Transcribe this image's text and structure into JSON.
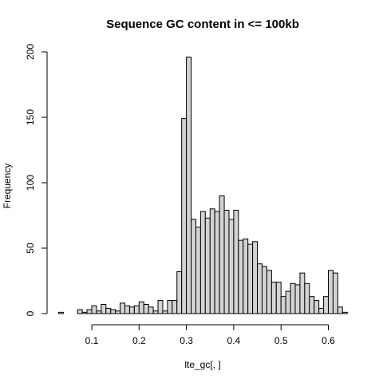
{
  "chart_data": {
    "type": "bar",
    "title": "Sequence GC content in <= 100kb",
    "xlabel": "lte_gc[, ]",
    "ylabel": "Frequency",
    "x_ticks": [
      0.1,
      0.2,
      0.3,
      0.4,
      0.5,
      0.6
    ],
    "x_tick_labels": [
      "0.1",
      "0.2",
      "0.3",
      "0.4",
      "0.5",
      "0.6"
    ],
    "y_ticks": [
      0,
      50,
      100,
      150,
      200
    ],
    "y_tick_labels": [
      "0",
      "50",
      "100",
      "150",
      "200"
    ],
    "xlim": [
      0.03,
      0.64
    ],
    "ylim": [
      0,
      200
    ],
    "bin_width": 0.01,
    "bins_start": [
      0.03,
      0.04,
      0.05,
      0.06,
      0.07,
      0.08,
      0.09,
      0.1,
      0.11,
      0.12,
      0.13,
      0.14,
      0.15,
      0.16,
      0.17,
      0.18,
      0.19,
      0.2,
      0.21,
      0.22,
      0.23,
      0.24,
      0.25,
      0.26,
      0.27,
      0.28,
      0.29,
      0.3,
      0.31,
      0.32,
      0.33,
      0.34,
      0.35,
      0.36,
      0.37,
      0.38,
      0.39,
      0.4,
      0.41,
      0.42,
      0.43,
      0.44,
      0.45,
      0.46,
      0.47,
      0.48,
      0.49,
      0.5,
      0.51,
      0.52,
      0.53,
      0.54,
      0.55,
      0.56,
      0.57,
      0.58,
      0.59,
      0.6,
      0.61,
      0.62,
      0.63
    ],
    "values": [
      1,
      0,
      0,
      0,
      3,
      1,
      3,
      6,
      2,
      7,
      4,
      3,
      2,
      8,
      6,
      5,
      6,
      9,
      7,
      5,
      2,
      10,
      2,
      10,
      10,
      32,
      149,
      196,
      72,
      66,
      78,
      73,
      80,
      78,
      90,
      79,
      72,
      79,
      56,
      57,
      53,
      55,
      38,
      36,
      33,
      24,
      24,
      13,
      17,
      23,
      22,
      31,
      23,
      13,
      10,
      4,
      13,
      33,
      31,
      5,
      1
    ]
  }
}
